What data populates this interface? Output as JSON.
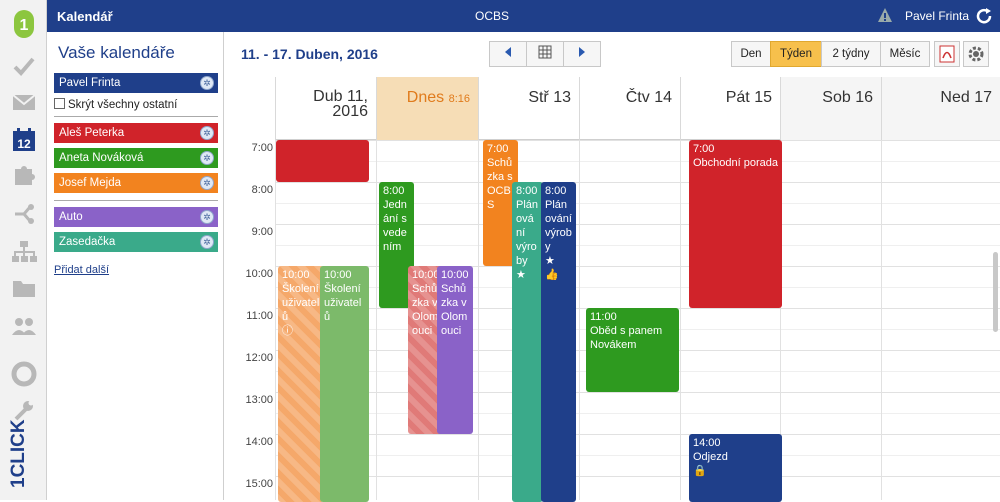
{
  "app": {
    "title": "Kalendář",
    "center": "OCBS",
    "user": "Pavel Frinta",
    "brand": "1CLICK",
    "brand_num": "1"
  },
  "rail": [
    "check-icon",
    "mail-icon",
    "calendar-icon",
    "puzzle-icon",
    "share-icon",
    "org-chart-icon",
    "folder-icon",
    "users-icon",
    "lifebuoy-icon",
    "wrench-icon"
  ],
  "rail_calendar_day": "12",
  "sidebar": {
    "title": "Vaše kalendáře",
    "owner": "Pavel Frinta",
    "hide_others": "Skrýt všechny ostatní",
    "people": [
      {
        "name": "Aleš Peterka",
        "color": "#d0232a"
      },
      {
        "name": "Aneta Nováková",
        "color": "#2e9a1f"
      },
      {
        "name": "Josef Mejda",
        "color": "#f2831f"
      }
    ],
    "resources": [
      {
        "name": "Auto",
        "color": "#8a62c8"
      },
      {
        "name": "Zasedačka",
        "color": "#3aaa8a"
      }
    ],
    "add": "Přidat další"
  },
  "toolbar": {
    "range": "11. - 17. Duben, 2016",
    "views": [
      "Den",
      "Týden",
      "2 týdny",
      "Měsíc"
    ],
    "active_view": "Týden"
  },
  "days": [
    {
      "label": "Dub 11,",
      "label2": "2016"
    },
    {
      "label": "Dnes",
      "time": "8:16"
    },
    {
      "label": "Stř 13"
    },
    {
      "label": "Čtv 14"
    },
    {
      "label": "Pát 15"
    },
    {
      "label": "Sob 16"
    },
    {
      "label": "Ned 17"
    }
  ],
  "hours": [
    "7:00",
    "8:00",
    "9:00",
    "10:00",
    "11:00",
    "12:00",
    "13:00",
    "14:00",
    "15:00"
  ],
  "events": [
    {
      "t": "10:00",
      "l": "Školení uživatelů",
      "c": "#f5a86a"
    },
    {
      "t": "10:00",
      "l": "Školení uživatelů",
      "c": "#7cba6a"
    },
    {
      "t": "8:00",
      "l": "Jednání s vedením",
      "c": "#2e9a1f"
    },
    {
      "t": "10:00",
      "l": "Schůzka v Olomouci",
      "c": "#e07a78"
    },
    {
      "t": "10:00",
      "l": "Schůzka v Olomouci",
      "c": "#8a62c8"
    },
    {
      "t": "7:00",
      "l": "Schůzka s OCBS",
      "c": "#f2831f"
    },
    {
      "t": "8:00",
      "l": "Plánování výroby",
      "c": "#3aaa8a"
    },
    {
      "t": "8:00",
      "l": "Plánování výroby",
      "c": "#1f3f8a"
    },
    {
      "t": "11:00",
      "l": "Oběd s panem Novákem",
      "c": "#2e9a1f"
    },
    {
      "t": "7:00",
      "l": "Obchodní porada",
      "c": "#d0232a"
    },
    {
      "t": "14:00",
      "l": "Odjezd",
      "c": "#1f3f8a"
    },
    {
      "t": "",
      "l": "",
      "c": "#d0232a"
    }
  ]
}
